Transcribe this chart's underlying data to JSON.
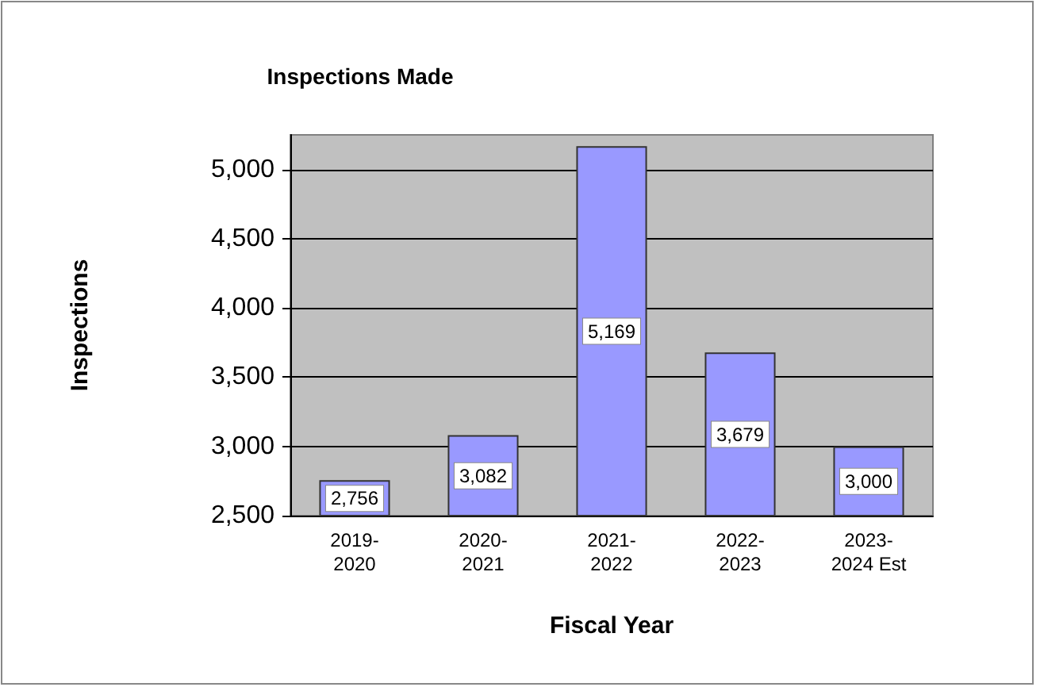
{
  "chart_data": {
    "type": "bar",
    "title": "Inspections Made",
    "xlabel": "Fiscal Year",
    "ylabel": "Inspections",
    "categories": [
      "2019-2020",
      "2020-2021",
      "2021-2022",
      "2022-2023",
      "2023-2024 Est"
    ],
    "values": [
      2756,
      3082,
      5169,
      3679,
      3000
    ],
    "color": "#9999ff",
    "value_labels": [
      "2,756",
      "3,082",
      "5,169",
      "3,679",
      "3,000"
    ],
    "ylim": [
      2500,
      5250
    ],
    "yticks": [
      {
        "value": 2500,
        "label": "2,500"
      },
      {
        "value": 3000,
        "label": "3,000"
      },
      {
        "value": 3500,
        "label": "3,500"
      },
      {
        "value": 4000,
        "label": "4,000"
      },
      {
        "value": 4500,
        "label": "4,500"
      },
      {
        "value": 5000,
        "label": "5,000"
      }
    ],
    "grid": "y"
  }
}
